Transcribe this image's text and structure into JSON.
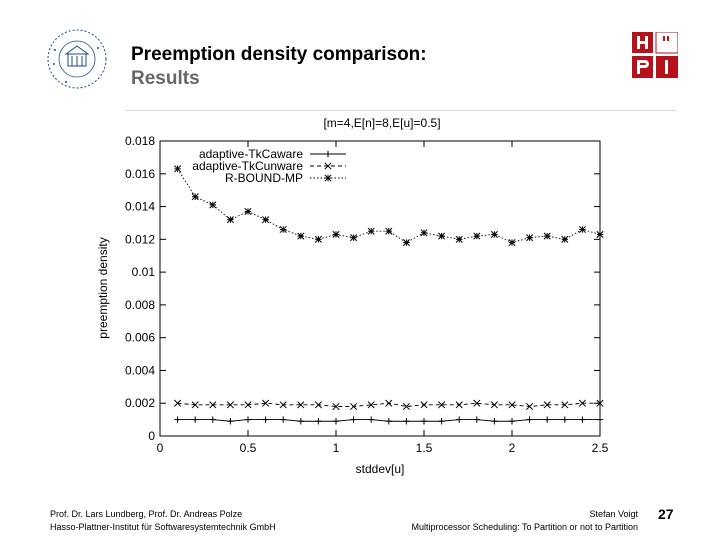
{
  "header": {
    "title": "Preemption density comparison:",
    "subtitle": "Results",
    "seal_text": "Universitas Potsdam",
    "hpi_logo_letters": [
      "H",
      "P",
      "I"
    ],
    "hpi_logo_color": "#b5121b"
  },
  "chart_data": {
    "type": "line",
    "title": "[m=4,E[n]=8,E[u]=0.5]",
    "xlabel": "stddev[u]",
    "ylabel": "preemption density",
    "xlim": [
      0,
      2.5
    ],
    "ylim": [
      0,
      0.018
    ],
    "x_ticks": [
      0,
      0.5,
      1,
      1.5,
      2,
      2.5
    ],
    "x_tick_labels": [
      "0",
      "0.5",
      "1",
      "1.5",
      "2",
      "2.5"
    ],
    "y_ticks": [
      0,
      0.002,
      0.004,
      0.006,
      0.008,
      0.01,
      0.012,
      0.014,
      0.016,
      0.018
    ],
    "y_tick_labels": [
      "0",
      "0.002",
      "0.004",
      "0.006",
      "0.008",
      "0.01",
      "0.012",
      "0.014",
      "0.016",
      "0.018"
    ],
    "grid": false,
    "legend_position": "top-left",
    "x": [
      0.1,
      0.2,
      0.3,
      0.4,
      0.5,
      0.6,
      0.7,
      0.8,
      0.9,
      1.0,
      1.1,
      1.2,
      1.3,
      1.4,
      1.5,
      1.6,
      1.7,
      1.8,
      1.9,
      2.0,
      2.1,
      2.2,
      2.3,
      2.4,
      2.5
    ],
    "series": [
      {
        "name": "adaptive-TkCaware",
        "marker": "plus",
        "dash": "solid",
        "values": [
          0.001,
          0.001,
          0.001,
          0.0009,
          0.001,
          0.001,
          0.001,
          0.0009,
          0.0009,
          0.0009,
          0.001,
          0.001,
          0.0009,
          0.0009,
          0.0009,
          0.0009,
          0.001,
          0.001,
          0.0009,
          0.0009,
          0.001,
          0.001,
          0.001,
          0.001,
          0.001
        ]
      },
      {
        "name": "adaptive-TkCunware",
        "marker": "cross",
        "dash": "dashed",
        "values": [
          0.002,
          0.0019,
          0.0019,
          0.0019,
          0.0019,
          0.002,
          0.0019,
          0.0019,
          0.0019,
          0.0018,
          0.0018,
          0.0019,
          0.002,
          0.0018,
          0.0019,
          0.0019,
          0.0019,
          0.002,
          0.0019,
          0.0019,
          0.0018,
          0.0019,
          0.0019,
          0.002,
          0.002
        ]
      },
      {
        "name": "R-BOUND-MP",
        "marker": "star",
        "dash": "dotted",
        "values": [
          0.0163,
          0.0146,
          0.0141,
          0.0132,
          0.0137,
          0.0132,
          0.0126,
          0.0122,
          0.012,
          0.0123,
          0.0121,
          0.0125,
          0.0125,
          0.0118,
          0.0124,
          0.0122,
          0.012,
          0.0122,
          0.0123,
          0.0118,
          0.0121,
          0.0122,
          0.012,
          0.0126,
          0.0123
        ]
      }
    ]
  },
  "footer": {
    "authors": "Prof. Dr. Lars Lundberg, Prof. Dr. Andreas Polze",
    "institute": "Hasso-Plattner-Institut für Softwaresystemtechnik GmbH",
    "presenter": "Stefan Voigt",
    "talk_title": "Multiprocessor Scheduling: To Partition or not to Partition",
    "page_number": "27"
  }
}
